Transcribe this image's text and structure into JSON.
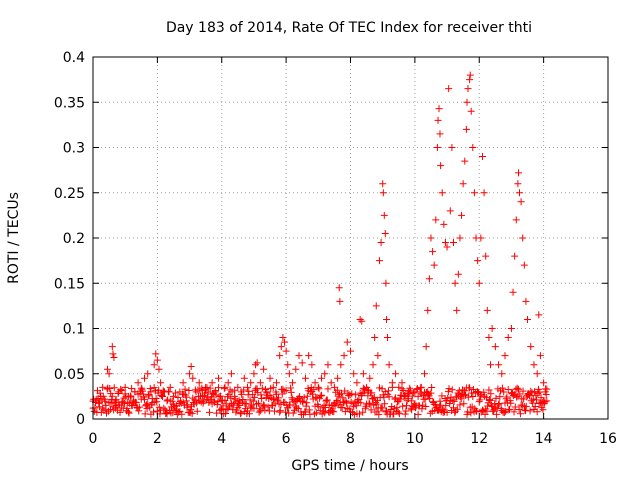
{
  "chart_data": {
    "type": "scatter",
    "title": "Day 183 of 2014, Rate Of TEC Index for receiver thti",
    "xlabel": "GPS time / hours",
    "ylabel": "ROTI / TECUs",
    "xlim": [
      0,
      16
    ],
    "ylim": [
      0,
      0.4
    ],
    "xticks": [
      0,
      2,
      4,
      6,
      8,
      10,
      12,
      14,
      16
    ],
    "yticks": [
      0,
      0.05,
      0.1,
      0.15,
      0.2,
      0.25,
      0.3,
      0.35,
      0.4
    ],
    "xtick_labels": [
      "0",
      "2",
      "4",
      "6",
      "8",
      "10",
      "12",
      "14",
      "16"
    ],
    "ytick_labels": [
      "0",
      "0.05",
      "0.1",
      "0.15",
      "0.2",
      "0.25",
      "0.3",
      "0.35",
      "0.4"
    ],
    "grid": true,
    "marker": "+",
    "color": "#ff0000",
    "series": [
      {
        "name": "ROTI",
        "points": [
          [
            0.0,
            0.012
          ],
          [
            0.1,
            0.022
          ],
          [
            0.2,
            0.018
          ],
          [
            0.3,
            0.035
          ],
          [
            0.4,
            0.015
          ],
          [
            0.45,
            0.055
          ],
          [
            0.5,
            0.05
          ],
          [
            0.55,
            0.028
          ],
          [
            0.6,
            0.08
          ],
          [
            0.62,
            0.072
          ],
          [
            0.65,
            0.068
          ],
          [
            0.7,
            0.02
          ],
          [
            0.8,
            0.03
          ],
          [
            0.9,
            0.018
          ],
          [
            1.0,
            0.035
          ],
          [
            1.1,
            0.025
          ],
          [
            1.2,
            0.015
          ],
          [
            1.3,
            0.03
          ],
          [
            1.4,
            0.04
          ],
          [
            1.5,
            0.022
          ],
          [
            1.6,
            0.045
          ],
          [
            1.7,
            0.05
          ],
          [
            1.8,
            0.03
          ],
          [
            1.9,
            0.06
          ],
          [
            1.95,
            0.072
          ],
          [
            2.0,
            0.065
          ],
          [
            2.05,
            0.055
          ],
          [
            2.1,
            0.04
          ],
          [
            2.2,
            0.03
          ],
          [
            2.3,
            0.02
          ],
          [
            2.4,
            0.035
          ],
          [
            2.5,
            0.025
          ],
          [
            2.6,
            0.015
          ],
          [
            2.7,
            0.03
          ],
          [
            2.8,
            0.04
          ],
          [
            2.9,
            0.02
          ],
          [
            3.0,
            0.05
          ],
          [
            3.05,
            0.058
          ],
          [
            3.1,
            0.045
          ],
          [
            3.2,
            0.03
          ],
          [
            3.3,
            0.04
          ],
          [
            3.4,
            0.025
          ],
          [
            3.5,
            0.035
          ],
          [
            3.6,
            0.02
          ],
          [
            3.7,
            0.04
          ],
          [
            3.8,
            0.03
          ],
          [
            3.9,
            0.045
          ],
          [
            4.0,
            0.02
          ],
          [
            4.1,
            0.035
          ],
          [
            4.2,
            0.04
          ],
          [
            4.3,
            0.05
          ],
          [
            4.4,
            0.025
          ],
          [
            4.5,
            0.035
          ],
          [
            4.6,
            0.03
          ],
          [
            4.7,
            0.045
          ],
          [
            4.8,
            0.035
          ],
          [
            4.9,
            0.04
          ],
          [
            5.0,
            0.05
          ],
          [
            5.05,
            0.06
          ],
          [
            5.1,
            0.062
          ],
          [
            5.2,
            0.04
          ],
          [
            5.3,
            0.055
          ],
          [
            5.4,
            0.03
          ],
          [
            5.5,
            0.045
          ],
          [
            5.6,
            0.035
          ],
          [
            5.7,
            0.04
          ],
          [
            5.8,
            0.07
          ],
          [
            5.85,
            0.08
          ],
          [
            5.9,
            0.09
          ],
          [
            5.95,
            0.085
          ],
          [
            6.0,
            0.075
          ],
          [
            6.05,
            0.06
          ],
          [
            6.1,
            0.05
          ],
          [
            6.2,
            0.04
          ],
          [
            6.3,
            0.055
          ],
          [
            6.4,
            0.07
          ],
          [
            6.5,
            0.062
          ],
          [
            6.6,
            0.045
          ],
          [
            6.7,
            0.07
          ],
          [
            6.8,
            0.06
          ],
          [
            6.9,
            0.04
          ],
          [
            7.0,
            0.035
          ],
          [
            7.1,
            0.045
          ],
          [
            7.2,
            0.05
          ],
          [
            7.3,
            0.06
          ],
          [
            7.4,
            0.04
          ],
          [
            7.5,
            0.035
          ],
          [
            7.6,
            0.045
          ],
          [
            7.65,
            0.145
          ],
          [
            7.67,
            0.13
          ],
          [
            7.7,
            0.06
          ],
          [
            7.8,
            0.07
          ],
          [
            7.9,
            0.085
          ],
          [
            8.0,
            0.075
          ],
          [
            8.1,
            0.05
          ],
          [
            8.2,
            0.04
          ],
          [
            8.3,
            0.11
          ],
          [
            8.35,
            0.108
          ],
          [
            8.4,
            0.05
          ],
          [
            8.5,
            0.035
          ],
          [
            8.6,
            0.045
          ],
          [
            8.7,
            0.06
          ],
          [
            8.75,
            0.09
          ],
          [
            8.8,
            0.125
          ],
          [
            8.85,
            0.07
          ],
          [
            8.9,
            0.175
          ],
          [
            8.95,
            0.195
          ],
          [
            9.0,
            0.26
          ],
          [
            9.02,
            0.25
          ],
          [
            9.05,
            0.225
          ],
          [
            9.08,
            0.205
          ],
          [
            9.1,
            0.15
          ],
          [
            9.12,
            0.11
          ],
          [
            9.15,
            0.09
          ],
          [
            9.2,
            0.06
          ],
          [
            9.3,
            0.04
          ],
          [
            9.4,
            0.05
          ],
          [
            9.5,
            0.035
          ],
          [
            9.6,
            0.04
          ],
          [
            9.7,
            0.025
          ],
          [
            9.8,
            0.03
          ],
          [
            9.9,
            0.02
          ],
          [
            10.0,
            0.03
          ],
          [
            10.1,
            0.025
          ],
          [
            10.2,
            0.035
          ],
          [
            10.3,
            0.05
          ],
          [
            10.35,
            0.08
          ],
          [
            10.4,
            0.12
          ],
          [
            10.45,
            0.155
          ],
          [
            10.5,
            0.2
          ],
          [
            10.55,
            0.185
          ],
          [
            10.6,
            0.17
          ],
          [
            10.65,
            0.22
          ],
          [
            10.7,
            0.3
          ],
          [
            10.72,
            0.33
          ],
          [
            10.75,
            0.343
          ],
          [
            10.78,
            0.315
          ],
          [
            10.8,
            0.28
          ],
          [
            10.85,
            0.25
          ],
          [
            10.9,
            0.215
          ],
          [
            10.95,
            0.195
          ],
          [
            11.0,
            0.19
          ],
          [
            11.05,
            0.365
          ],
          [
            11.1,
            0.23
          ],
          [
            11.15,
            0.3
          ],
          [
            11.2,
            0.195
          ],
          [
            11.25,
            0.15
          ],
          [
            11.3,
            0.12
          ],
          [
            11.35,
            0.16
          ],
          [
            11.4,
            0.2
          ],
          [
            11.45,
            0.225
          ],
          [
            11.5,
            0.26
          ],
          [
            11.55,
            0.285
          ],
          [
            11.6,
            0.32
          ],
          [
            11.62,
            0.35
          ],
          [
            11.65,
            0.365
          ],
          [
            11.7,
            0.375
          ],
          [
            11.72,
            0.38
          ],
          [
            11.75,
            0.34
          ],
          [
            11.8,
            0.3
          ],
          [
            11.85,
            0.25
          ],
          [
            11.9,
            0.2
          ],
          [
            11.95,
            0.175
          ],
          [
            12.0,
            0.15
          ],
          [
            12.05,
            0.2
          ],
          [
            12.1,
            0.29
          ],
          [
            12.15,
            0.25
          ],
          [
            12.2,
            0.18
          ],
          [
            12.25,
            0.12
          ],
          [
            12.3,
            0.09
          ],
          [
            12.35,
            0.06
          ],
          [
            12.4,
            0.1
          ],
          [
            12.5,
            0.08
          ],
          [
            12.6,
            0.06
          ],
          [
            12.7,
            0.05
          ],
          [
            12.8,
            0.07
          ],
          [
            12.9,
            0.09
          ],
          [
            13.0,
            0.1
          ],
          [
            13.05,
            0.14
          ],
          [
            13.1,
            0.18
          ],
          [
            13.15,
            0.22
          ],
          [
            13.2,
            0.26
          ],
          [
            13.22,
            0.272
          ],
          [
            13.25,
            0.25
          ],
          [
            13.3,
            0.24
          ],
          [
            13.35,
            0.2
          ],
          [
            13.4,
            0.17
          ],
          [
            13.45,
            0.13
          ],
          [
            13.5,
            0.11
          ],
          [
            13.6,
            0.08
          ],
          [
            13.7,
            0.06
          ],
          [
            13.8,
            0.05
          ],
          [
            13.85,
            0.115
          ],
          [
            13.9,
            0.07
          ],
          [
            14.0,
            0.04
          ],
          [
            14.05,
            0.03
          ],
          [
            14.1,
            0.02
          ]
        ]
      }
    ]
  }
}
